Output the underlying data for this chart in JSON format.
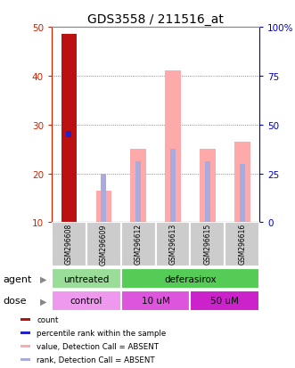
{
  "title": "GDS3558 / 211516_at",
  "samples": [
    "GSM296608",
    "GSM296609",
    "GSM296612",
    "GSM296613",
    "GSM296615",
    "GSM296616"
  ],
  "count_values": [
    48.5,
    0,
    0,
    0,
    0,
    0
  ],
  "count_color": "#bb1111",
  "percentile_values": [
    28,
    0,
    0,
    0,
    0,
    0
  ],
  "percentile_color": "#2222cc",
  "value_absent": [
    0,
    16.5,
    25,
    41,
    25,
    26.5
  ],
  "value_absent_color": "#ffaaaa",
  "rank_absent": [
    0,
    20,
    22.5,
    25,
    22.5,
    22
  ],
  "rank_absent_color": "#aaaadd",
  "ylim_left": [
    10,
    50
  ],
  "ylim_right": [
    0,
    100
  ],
  "yticks_left": [
    10,
    20,
    30,
    40,
    50
  ],
  "yticks_right": [
    0,
    25,
    50,
    75,
    100
  ],
  "ytick_labels_left": [
    "10",
    "20",
    "30",
    "40",
    "50"
  ],
  "ytick_labels_right": [
    "0",
    "25",
    "50",
    "75",
    "100%"
  ],
  "left_tick_color": "#cc2200",
  "right_tick_color": "#0000cc",
  "agent_labels": [
    [
      "untreated",
      0,
      2
    ],
    [
      "deferasirox",
      2,
      6
    ]
  ],
  "agent_color_untreated": "#99dd99",
  "agent_color_deferasirox": "#55cc55",
  "dose_labels": [
    [
      "control",
      0,
      2
    ],
    [
      "10 uM",
      2,
      4
    ],
    [
      "50 uM",
      4,
      6
    ]
  ],
  "dose_color_control": "#ee99ee",
  "dose_color_10uM": "#dd55dd",
  "dose_color_50uM": "#cc22cc",
  "legend_items": [
    {
      "label": "count",
      "color": "#bb1111"
    },
    {
      "label": "percentile rank within the sample",
      "color": "#2222cc"
    },
    {
      "label": "value, Detection Call = ABSENT",
      "color": "#ffaaaa"
    },
    {
      "label": "rank, Detection Call = ABSENT",
      "color": "#aaaadd"
    }
  ],
  "bar_width": 0.45,
  "thin_bar_width": 0.15,
  "background_color": "#ffffff",
  "grid_color": "#666666",
  "sample_bg_color": "#cccccc",
  "sample_border_color": "#ffffff"
}
